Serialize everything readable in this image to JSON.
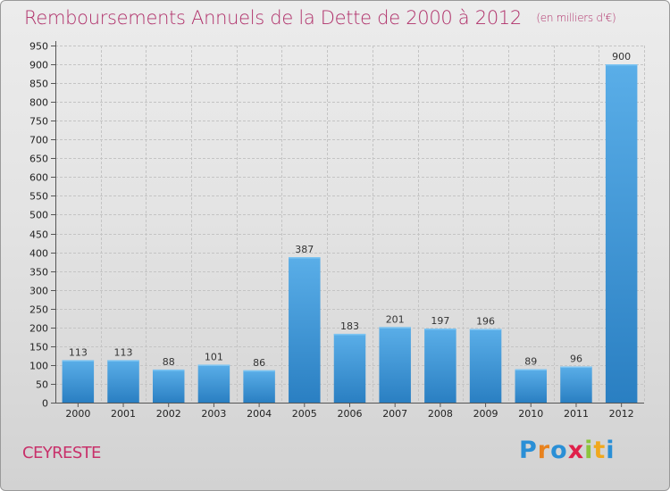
{
  "chart_data": {
    "type": "bar",
    "title": "Remboursements Annuels de la Dette de 2000 à 2012",
    "subtitle": "(en milliers d'€)",
    "xlabel": "",
    "ylabel": "",
    "categories": [
      "2000",
      "2001",
      "2002",
      "2003",
      "2004",
      "2005",
      "2006",
      "2007",
      "2008",
      "2009",
      "2010",
      "2011",
      "2012"
    ],
    "values": [
      113,
      113,
      88,
      101,
      86,
      387,
      183,
      201,
      197,
      196,
      89,
      96,
      900
    ],
    "ylim": [
      0,
      950
    ],
    "yticks": [
      0,
      50,
      100,
      150,
      200,
      250,
      300,
      350,
      400,
      450,
      500,
      550,
      600,
      650,
      700,
      750,
      800,
      850,
      900,
      950
    ],
    "grid": true,
    "bar_color": "#3a95d8"
  },
  "commune": "CEYRESTE",
  "logo": {
    "letters": [
      "P",
      "r",
      "o",
      "x",
      "i",
      "t",
      "i"
    ],
    "colors": [
      "#2a8fd6",
      "#e8821e",
      "#2a8fd6",
      "#e0204a",
      "#8cc43c",
      "#f0a81e",
      "#2a8fd6"
    ]
  }
}
